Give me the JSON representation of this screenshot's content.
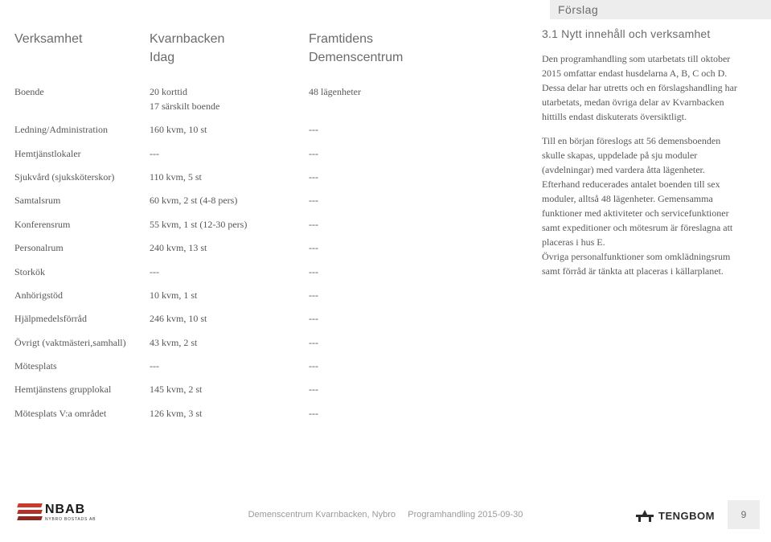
{
  "top_tab": "Förslag",
  "table": {
    "col1_header": "Verksamhet",
    "col2_header_line1": "Kvarnbacken",
    "col2_header_line2": "Idag",
    "col3_header_line1": "Framtidens",
    "col3_header_line2": "Demenscentrum",
    "rows": [
      {
        "c1": "Boende",
        "c2l1": "20 korttid",
        "c2l2": "17 särskilt boende",
        "c3": "48 lägenheter",
        "ml": true
      },
      {
        "c1": "Ledning/Administration",
        "c2": "160 kvm, 10 st",
        "c3": "---"
      },
      {
        "c1": "Hemtjänstlokaler",
        "c2": "---",
        "c3": "---"
      },
      {
        "c1": "Sjukvård (sjuksköterskor)",
        "c2": "110 kvm, 5 st",
        "c3": "---"
      },
      {
        "c1": "Samtalsrum",
        "c2": "60 kvm, 2 st (4-8 pers)",
        "c3": "---"
      },
      {
        "c1": "Konferensrum",
        "c2": "55 kvm, 1 st (12-30 pers)",
        "c3": "---"
      },
      {
        "c1": "Personalrum",
        "c2": "240 kvm, 13 st",
        "c3": "---"
      },
      {
        "c1": "Storkök",
        "c2": "---",
        "c3": "---"
      },
      {
        "c1": "Anhörigstöd",
        "c2": "10 kvm, 1 st",
        "c3": "---"
      },
      {
        "c1": "Hjälpmedelsförråd",
        "c2": "246 kvm, 10 st",
        "c3": "---"
      },
      {
        "c1": "Övrigt (vaktmästeri,samhall)",
        "c2": "43 kvm, 2 st",
        "c3": "---"
      },
      {
        "c1": "Mötesplats",
        "c2": "---",
        "c3": "---"
      },
      {
        "c1": "Hemtjänstens grupplokal",
        "c2": "145 kvm, 2 st",
        "c3": "---"
      },
      {
        "c1": "Mötesplats V:a området",
        "c2": "126 kvm, 3 st",
        "c3": "---"
      }
    ]
  },
  "right": {
    "heading": "3.1 Nytt innehåll och verksamhet",
    "p1": "Den programhandling som utarbetats till oktober 2015 omfattar endast husdelarna A, B, C och D. Dessa delar har utretts och en förslagshandling har utarbetats, medan övriga delar av Kvarnbacken hittills endast diskuterats översiktligt.",
    "p2": "Till en början föreslogs att 56 demensboenden skulle skapas, uppdelade på sju moduler (avdelningar) med vardera åtta lägenheter. Efterhand reducerades antalet boenden till sex moduler, alltså 48 lägenheter. Gemensamma funktioner med aktiviteter och servicefunktioner samt expeditioner och mötesrum är föreslagna att placeras i hus E.",
    "p3": "Övriga personalfunktioner som omklädningsrum samt förråd är tänkta att placeras i källarplanet."
  },
  "footer": {
    "nbab_big": "NBAB",
    "nbab_small": "NYBRO BOSTADS AB",
    "center_left": "Demenscentrum Kvarnbacken, Nybro",
    "center_right": "Programhandling 2015-09-30",
    "tengbom": "TENGBOM",
    "page": "9"
  }
}
